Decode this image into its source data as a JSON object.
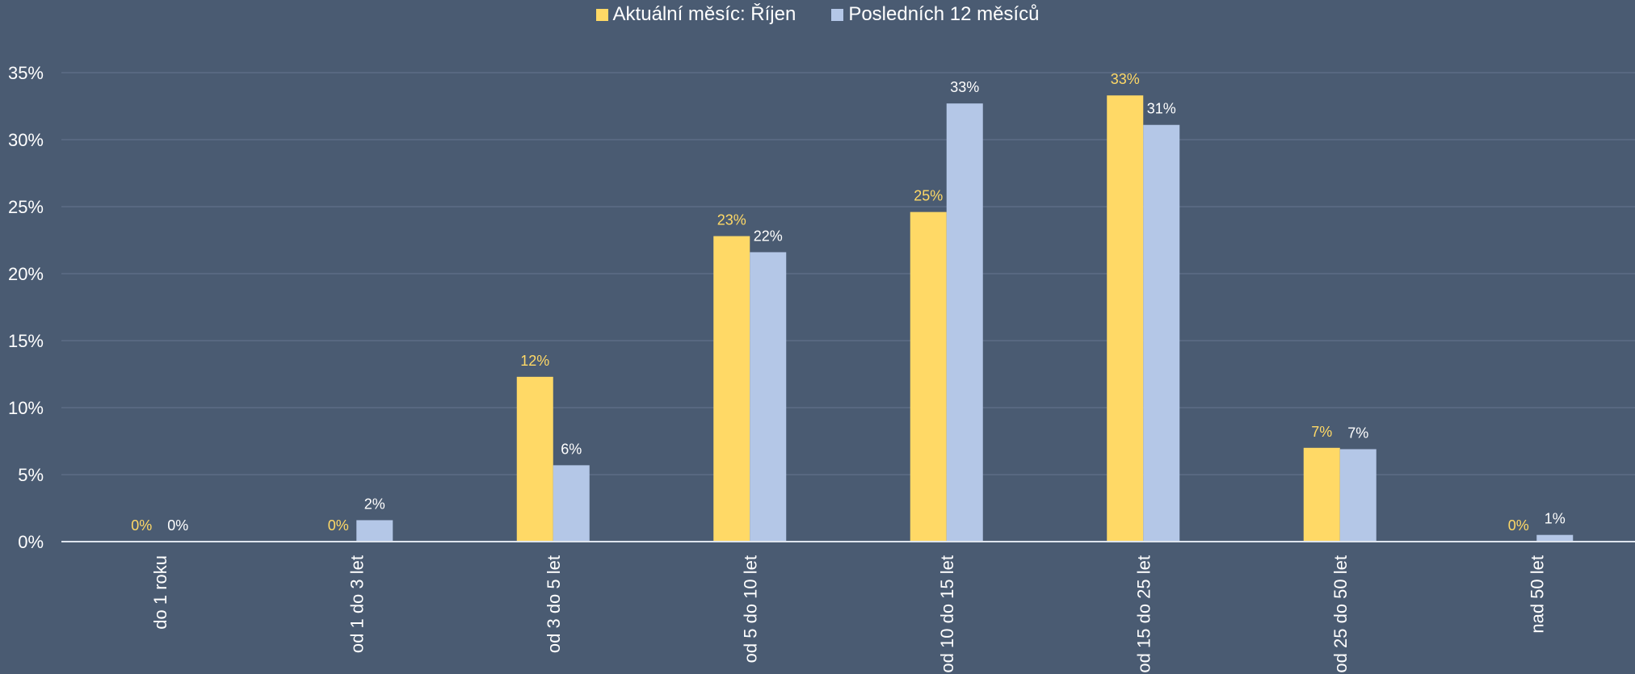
{
  "colors": {
    "background": "#4a5b72",
    "gridline": "#5c6d86",
    "axis": "#dfe5ee",
    "tick_text": "#ffffff",
    "series_current": "#ffd966",
    "series_last12": "#b4c7e7"
  },
  "chart_data": {
    "type": "bar",
    "categories": [
      "do 1 roku",
      "od 1 do 3 let",
      "od 3 do 5 let",
      "od 5 do 10 let",
      "od 10 do 15 let",
      "od 15 do 25 let",
      "od 25 do 50 let",
      "nad 50 let"
    ],
    "series": [
      {
        "name": "Aktuální měsíc: Říjen",
        "values": [
          0,
          0,
          12.3,
          22.8,
          24.6,
          33.3,
          7.0,
          0
        ],
        "labels": [
          "0%",
          "0%",
          "12%",
          "23%",
          "25%",
          "33%",
          "7%",
          "0%"
        ]
      },
      {
        "name": "Posledních 12 měsíců",
        "values": [
          0,
          1.6,
          5.7,
          21.6,
          32.7,
          31.1,
          6.9,
          0.5
        ],
        "labels": [
          "0%",
          "2%",
          "6%",
          "22%",
          "33%",
          "31%",
          "7%",
          "1%"
        ]
      }
    ],
    "yticks": [
      "0%",
      "5%",
      "10%",
      "15%",
      "20%",
      "25%",
      "30%",
      "35%"
    ],
    "ylim": [
      0,
      35
    ],
    "grid": true,
    "legend_position": "top-center",
    "title": "",
    "xlabel": "",
    "ylabel": ""
  }
}
